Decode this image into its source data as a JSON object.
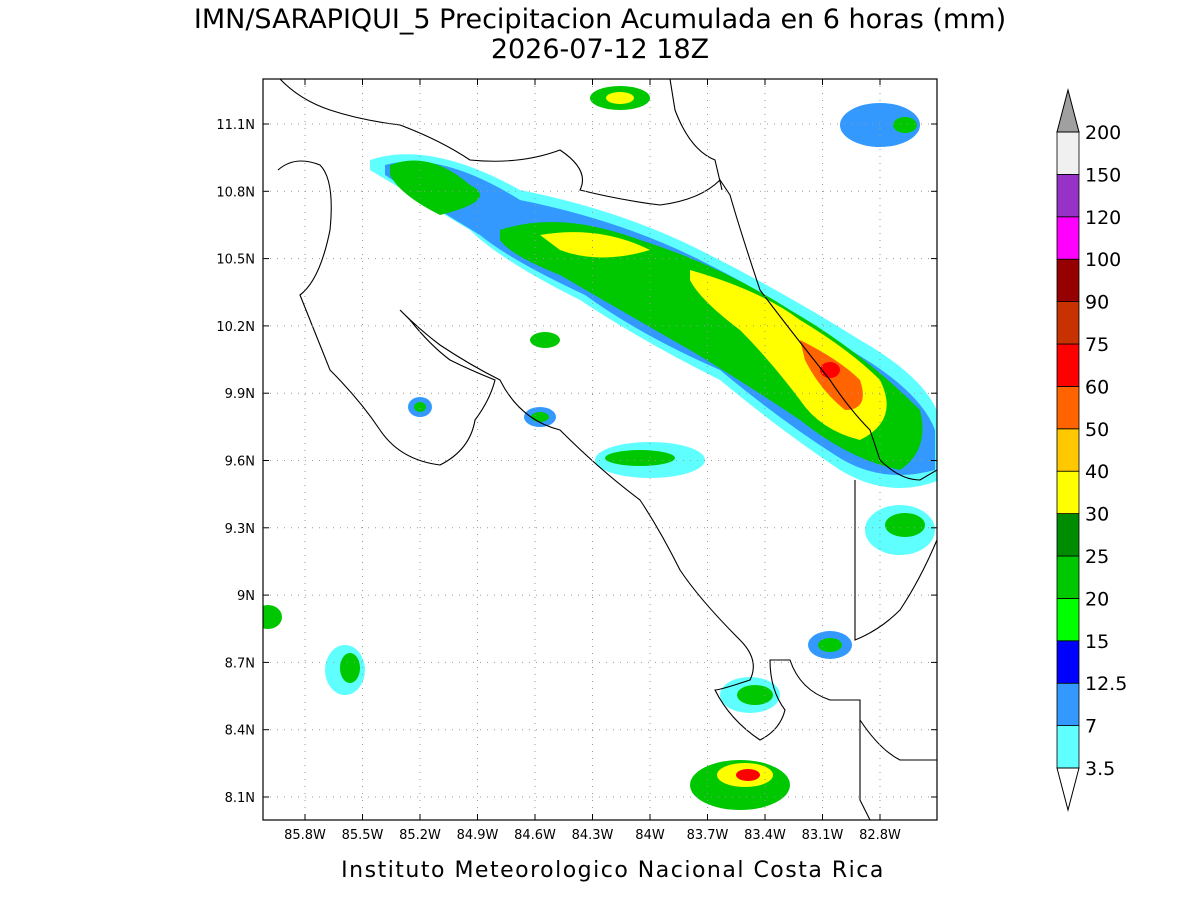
{
  "title": "IMN/SARAPIQUI_5 Precipitacion Acumulada en 6 horas (mm)",
  "subtitle": "2026-07-12 18Z",
  "map": {
    "lat_ticks": [
      "11.1N",
      "10.8N",
      "10.5N",
      "10.2N",
      "9.9N",
      "9.6N",
      "9.3N",
      "9N",
      "8.7N",
      "8.4N",
      "8.1N"
    ],
    "lon_ticks": [
      "85.8W",
      "85.5W",
      "85.2W",
      "84.9W",
      "84.6W",
      "84.3W",
      "84W",
      "83.7W",
      "83.4W",
      "83.1W",
      "82.8W"
    ]
  },
  "colorbar": {
    "levels": [
      "3.5",
      "7",
      "12.5",
      "15",
      "20",
      "25",
      "30",
      "40",
      "50",
      "60",
      "75",
      "90",
      "100",
      "120",
      "150",
      "200"
    ],
    "colors": [
      "#5fffff",
      "#3399ff",
      "#0000ff",
      "#00ff00",
      "#00c800",
      "#008c00",
      "#ffff00",
      "#ffc800",
      "#ff6400",
      "#ff0000",
      "#c83200",
      "#960000",
      "#ff00ff",
      "#9632c8",
      "#f0f0f0"
    ],
    "over_color": "#a0a0a0",
    "under_color": "#ffffff"
  },
  "footer": "Instituto Meteorologico Nacional Costa Rica"
}
